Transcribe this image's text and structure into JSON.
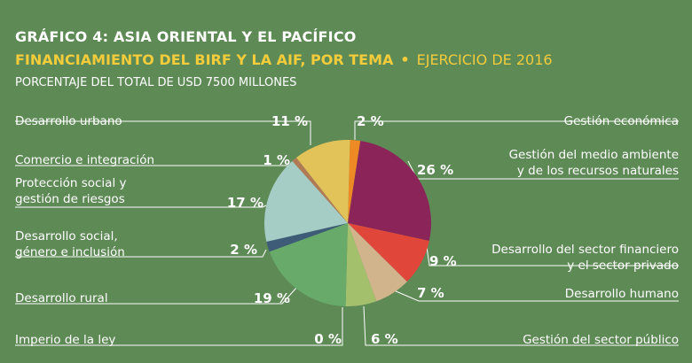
{
  "header": {
    "title": "GRÁFICO 4: ASIA ORIENTAL Y EL PACÍFICO",
    "subtitle": "FINANCIAMIENTO DEL BIRF Y LA AIF, POR TEMA",
    "separator": "•",
    "fiscal_year": "EJERCICIO DE 2016",
    "unit": "PORCENTAJE DEL TOTAL DE USD 7500 MILLONES"
  },
  "chart_data": {
    "type": "pie",
    "title": "GRÁFICO 4: ASIA ORIENTAL Y EL PACÍFICO",
    "subtitle": "FINANCIAMIENTO DEL BIRF Y LA AIF, POR TEMA • EJERCICIO DE 2016",
    "unit_label": "PORCENTAJE DEL TOTAL DE USD 7500 MILLONES",
    "slices": [
      {
        "label": "Gestión económica",
        "label_lines": [
          "Gestión económica"
        ],
        "value": 2,
        "pct_label": "2 %",
        "color": "#ee8a24"
      },
      {
        "label": "Gestión del medio ambiente y de los recursos naturales",
        "label_lines": [
          "Gestión del medio ambiente",
          "y de los recursos naturales"
        ],
        "value": 26,
        "pct_label": "26 %",
        "color": "#8a2459"
      },
      {
        "label": "Desarrollo del sector financiero y el sector privado",
        "label_lines": [
          "Desarrollo del sector financiero",
          "y el sector privado"
        ],
        "value": 9,
        "pct_label": "9 %",
        "color": "#e0473a"
      },
      {
        "label": "Desarrollo humano",
        "label_lines": [
          "Desarrollo humano"
        ],
        "value": 7,
        "pct_label": "7 %",
        "color": "#d2b48c"
      },
      {
        "label": "Gestión del sector público",
        "label_lines": [
          "Gestión del sector público"
        ],
        "value": 6,
        "pct_label": "6 %",
        "color": "#a3c06c"
      },
      {
        "label": "Imperio de la ley",
        "label_lines": [
          "Imperio de la ley"
        ],
        "value": 0,
        "pct_label": "0 %",
        "color": "#8ab45e"
      },
      {
        "label": "Desarrollo rural",
        "label_lines": [
          "Desarrollo rural"
        ],
        "value": 19,
        "pct_label": "19 %",
        "color": "#67aa6a"
      },
      {
        "label": "Desarrollo social, género e inclusión",
        "label_lines": [
          "Desarrollo social,",
          "género e inclusión"
        ],
        "value": 2,
        "pct_label": "2 %",
        "color": "#3e5c78"
      },
      {
        "label": "Protección social y gestión de riesgos",
        "label_lines": [
          "Protección social y",
          "gestión de riesgos"
        ],
        "value": 17,
        "pct_label": "17 %",
        "color": "#a6ccc6"
      },
      {
        "label": "Comercio e integración",
        "label_lines": [
          "Comercio e integración"
        ],
        "value": 1,
        "pct_label": "1 %",
        "color": "#b07a55"
      },
      {
        "label": "Desarrollo urbano",
        "label_lines": [
          "Desarrollo urbano"
        ],
        "value": 11,
        "pct_label": "11 %",
        "color": "#e2c35a"
      }
    ]
  }
}
